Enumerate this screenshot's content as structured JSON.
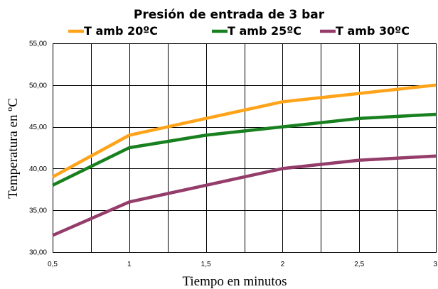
{
  "chart_data": {
    "type": "line",
    "title": "Presión de entrada de 3 bar",
    "xlabel": "Tiempo en minutos",
    "ylabel": "Temperatura en ºC",
    "x": [
      0.5,
      1,
      1.5,
      2,
      2.5,
      3
    ],
    "x_tick_labels": [
      "0,5",
      "1",
      "1,5",
      "2",
      "2,5",
      "3"
    ],
    "y_tick_labels": [
      "30,00",
      "35,00",
      "40,00",
      "45,00",
      "50,00",
      "55,00"
    ],
    "xlim": [
      0.5,
      3
    ],
    "ylim": [
      30,
      55
    ],
    "grid": true,
    "legend_position": "top",
    "series": [
      {
        "name": "T amb 20ºC",
        "color": "#FFA31A",
        "values": [
          39.0,
          44.0,
          46.0,
          48.0,
          49.0,
          50.0
        ]
      },
      {
        "name": "T amb 25ºC",
        "color": "#18801F",
        "values": [
          38.0,
          42.5,
          44.0,
          45.0,
          46.0,
          46.5
        ]
      },
      {
        "name": "T amb 30ºC",
        "color": "#943C6A",
        "values": [
          32.0,
          36.0,
          38.0,
          40.0,
          41.0,
          41.5
        ]
      }
    ]
  }
}
